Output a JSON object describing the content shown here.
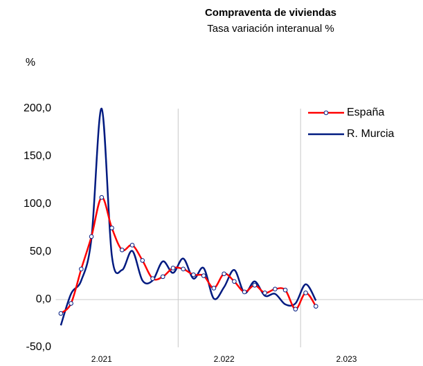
{
  "chart_data": {
    "type": "line",
    "title": "Compraventa de viviendas",
    "subtitle": "Tasa variación interanual %",
    "y_label": "%",
    "categories": [
      null,
      null,
      null,
      null,
      "2.021",
      null,
      null,
      null,
      null,
      null,
      null,
      null,
      null,
      null,
      null,
      null,
      "2.022",
      null,
      null,
      null,
      null,
      null,
      null,
      null,
      null,
      null,
      null,
      null,
      "2.023",
      null,
      null,
      null,
      null,
      null,
      null,
      null
    ],
    "series": [
      {
        "name": "España",
        "color": "#ff0000",
        "marker": true,
        "values": [
          -14.5,
          -4,
          32,
          66,
          107,
          75,
          52,
          57,
          41,
          22,
          24,
          33,
          32,
          26,
          25,
          12,
          27,
          19,
          8,
          15,
          7,
          11,
          10,
          -10,
          7,
          -7,
          null,
          null,
          null,
          null,
          null,
          null,
          null,
          null,
          null,
          null
        ]
      },
      {
        "name": "R. Murcia",
        "color": "#001a80",
        "marker": false,
        "values": [
          -27,
          6,
          20,
          64,
          200,
          46,
          31,
          51,
          20,
          20,
          40,
          28,
          43,
          22,
          33,
          1,
          13,
          31,
          7,
          19,
          4,
          6,
          -5,
          -4,
          16,
          -1,
          null,
          null,
          null,
          null,
          null,
          null,
          null,
          null,
          null,
          null
        ]
      }
    ],
    "ylim": [
      -50,
      200
    ],
    "yticks": [
      {
        "value": -50,
        "label": "-50,0"
      },
      {
        "value": 0,
        "label": "0,0"
      },
      {
        "value": 50,
        "label": "50,0"
      },
      {
        "value": 100,
        "label": "100,0"
      },
      {
        "value": 150,
        "label": "150,0"
      },
      {
        "value": 200,
        "label": "200,0"
      }
    ],
    "legend": "top-right"
  }
}
